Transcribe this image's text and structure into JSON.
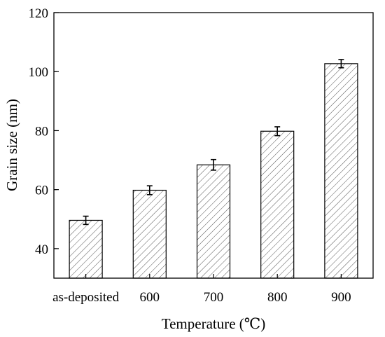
{
  "chart_data": {
    "type": "bar",
    "categories": [
      "as-deposited",
      "600",
      "700",
      "800",
      "900"
    ],
    "values": [
      49.6,
      59.8,
      68.4,
      79.8,
      102.7
    ],
    "errors": [
      1.4,
      1.5,
      1.8,
      1.5,
      1.4
    ],
    "xlabel": "Temperature (℃)",
    "ylabel": "Grain size (nm)",
    "ylim": [
      30,
      120
    ],
    "yticks": [
      40,
      60,
      80,
      100,
      120
    ],
    "grid": false,
    "legend": "none",
    "bar_fill": "hatched diagonal",
    "colors": {
      "bar_edge": "#000000",
      "hatch": "#555555",
      "error_bar": "#000000"
    }
  }
}
